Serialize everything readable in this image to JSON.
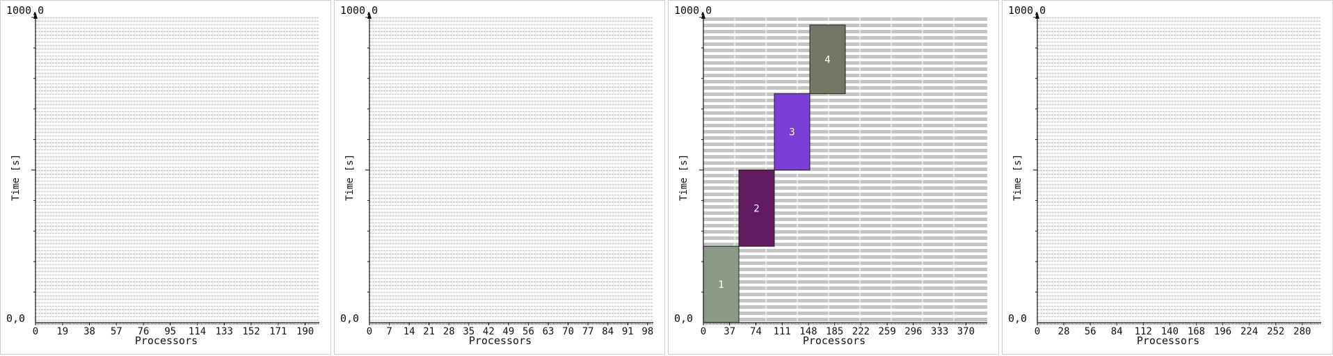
{
  "chart_data": [
    {
      "type": "gantt",
      "xlabel": "Processors",
      "ylabel": "Time [s]",
      "ymax_label": "1000,0",
      "ymin_label": "0,0",
      "xlim": [
        0,
        200
      ],
      "x_ticks": [
        "0",
        "19",
        "38",
        "57",
        "76",
        "95",
        "114",
        "133",
        "152",
        "171",
        "190"
      ],
      "grid": "dense",
      "jobs": []
    },
    {
      "type": "gantt",
      "xlabel": "Processors",
      "ylabel": "Time [s]",
      "ymax_label": "1000,0",
      "ymin_label": "0,0",
      "xlim": [
        0,
        100
      ],
      "x_ticks": [
        "0",
        "7",
        "14",
        "21",
        "28",
        "35",
        "42",
        "49",
        "56",
        "63",
        "70",
        "77",
        "84",
        "91",
        "98"
      ],
      "grid": "dense",
      "jobs": []
    },
    {
      "type": "gantt",
      "xlabel": "Processors",
      "ylabel": "Time [s]",
      "ymax_label": "1000,0",
      "ymin_label": "0,0",
      "xlim": [
        0,
        400
      ],
      "x_ticks": [
        "0",
        "37",
        "74",
        "111",
        "148",
        "185",
        "222",
        "259",
        "296",
        "333",
        "370"
      ],
      "grid": "banded",
      "jobs": [
        {
          "label": "1",
          "x0": 0,
          "x1": 50,
          "y0": 0,
          "y1": 250,
          "color": "#8a9a86"
        },
        {
          "label": "2",
          "x0": 50,
          "x1": 100,
          "y0": 250,
          "y1": 500,
          "color": "#621a60"
        },
        {
          "label": "3",
          "x0": 100,
          "x1": 150,
          "y0": 500,
          "y1": 750,
          "color": "#7b3fd6"
        },
        {
          "label": "4",
          "x0": 150,
          "x1": 200,
          "y0": 750,
          "y1": 975,
          "color": "#757665"
        }
      ]
    },
    {
      "type": "gantt",
      "xlabel": "Processors",
      "ylabel": "Time [s]",
      "ymax_label": "1000,0",
      "ymin_label": "0,0",
      "xlim": [
        0,
        300
      ],
      "x_ticks": [
        "0",
        "28",
        "56",
        "84",
        "112",
        "140",
        "168",
        "196",
        "224",
        "252",
        "280"
      ],
      "grid": "dense",
      "jobs": []
    }
  ]
}
